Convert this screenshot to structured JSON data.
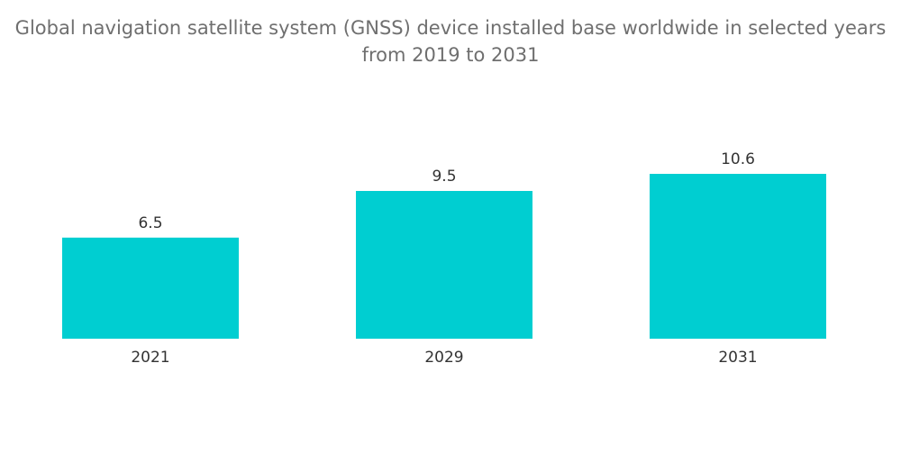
{
  "chart_data": {
    "type": "bar",
    "title": "Global navigation satellite system (GNSS) device installed base worldwide in selected years from 2019 to 2031",
    "title_lines": [
      "Global navigation satellite system (GNSS) device installed base worldwide in selected years",
      "from 2019 to 2031"
    ],
    "categories": [
      "2021",
      "2029",
      "2031"
    ],
    "values": [
      6.5,
      9.5,
      10.6
    ],
    "value_labels": [
      "6.5",
      "9.5",
      "10.6"
    ],
    "xlabel": "",
    "ylabel": "",
    "ylim": [
      0,
      10.6
    ],
    "grid": false,
    "legend": "none",
    "bar_color": "#00ced1"
  }
}
